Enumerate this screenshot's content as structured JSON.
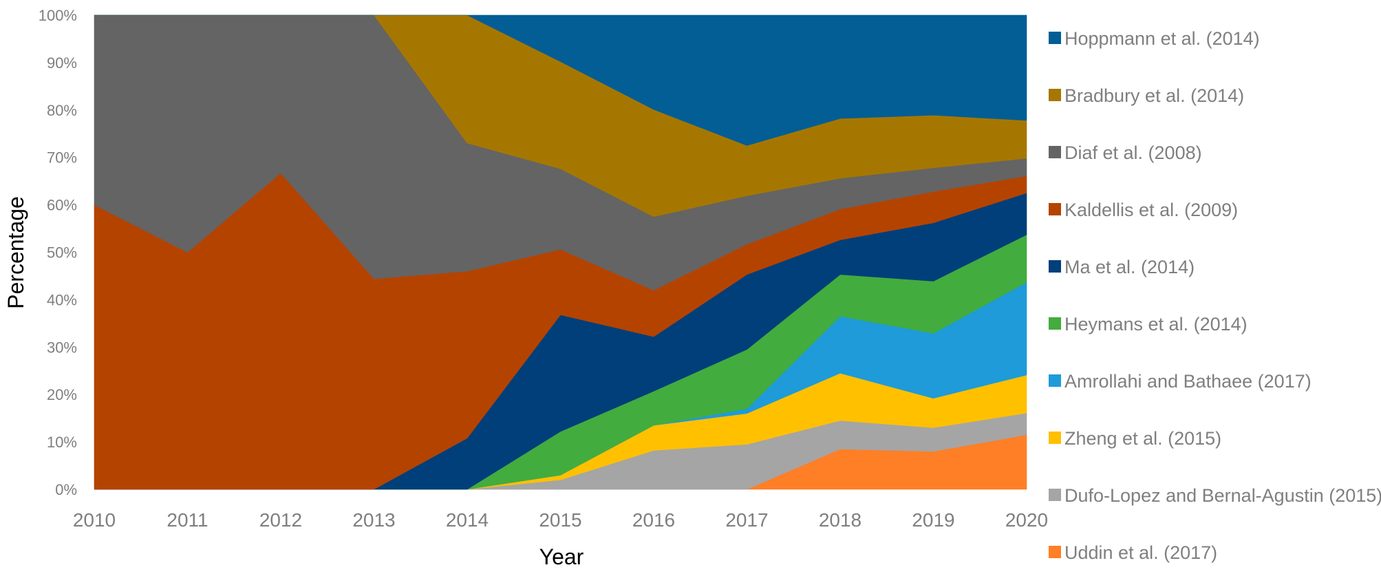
{
  "chart_data": {
    "type": "area",
    "stacked": "percent",
    "xlabel": "Year",
    "ylabel": "Percentage",
    "ylim": [
      0,
      100
    ],
    "y_ticks": [
      "0%",
      "10%",
      "20%",
      "30%",
      "40%",
      "50%",
      "60%",
      "70%",
      "80%",
      "90%",
      "100%"
    ],
    "x": [
      "2010",
      "2011",
      "2012",
      "2013",
      "2014",
      "2015",
      "2016",
      "2017",
      "2018",
      "2019",
      "2020"
    ],
    "legend_position": "right",
    "series": [
      {
        "name": "Uddin et al. (2017)",
        "color": "#FF7F27",
        "values": [
          0,
          0,
          0,
          0,
          0,
          0,
          0,
          0,
          8.5,
          8,
          11.5
        ]
      },
      {
        "name": "Dufo-Lopez and Bernal-Agustin (2015)",
        "color": "#A5A5A5",
        "values": [
          0,
          0,
          0,
          0,
          0,
          2,
          8.2,
          9.5,
          6,
          5,
          4.6
        ]
      },
      {
        "name": "Zheng et al. (2015)",
        "color": "#FFC000",
        "values": [
          0,
          0,
          0,
          0,
          0,
          1,
          5.3,
          6.5,
          10,
          6.2,
          8
        ]
      },
      {
        "name": "Amrollahi and Bathaee (2017)",
        "color": "#1E9BD8",
        "values": [
          0,
          0,
          0,
          0,
          0,
          0,
          0,
          1,
          12,
          13.7,
          19.6
        ]
      },
      {
        "name": "Heymans et al. (2014)",
        "color": "#43AC3E",
        "values": [
          0,
          0,
          0,
          0,
          0,
          9.2,
          7.2,
          12.5,
          8.8,
          11,
          10
        ]
      },
      {
        "name": "Ma et al. (2014)",
        "color": "#003F7A",
        "values": [
          0,
          0,
          0,
          0,
          10.8,
          24.6,
          11.5,
          15.8,
          7.3,
          12.3,
          8.8
        ]
      },
      {
        "name": "Kaldellis et al. (2009)",
        "color": "#B54300",
        "values": [
          60,
          50,
          66.7,
          44.4,
          35.2,
          13.8,
          9.8,
          6.4,
          6.5,
          6.6,
          3.6
        ]
      },
      {
        "name": "Diaf et al. (2008)",
        "color": "#646464",
        "values": [
          40,
          50,
          33.3,
          55.6,
          27,
          17,
          15.5,
          10.2,
          6.5,
          5,
          3.7
        ]
      },
      {
        "name": "Bradbury et al. (2014)",
        "color": "#A67700",
        "values": [
          0,
          0,
          0,
          0,
          27,
          22.6,
          22.6,
          10.6,
          12.6,
          11.1,
          8
        ]
      },
      {
        "name": "Hoppmann et al. (2014)",
        "color": "#025E95",
        "values": [
          0,
          0,
          0,
          0,
          0,
          9.8,
          19.9,
          27.5,
          21.8,
          21.1,
          22.2
        ]
      }
    ]
  }
}
